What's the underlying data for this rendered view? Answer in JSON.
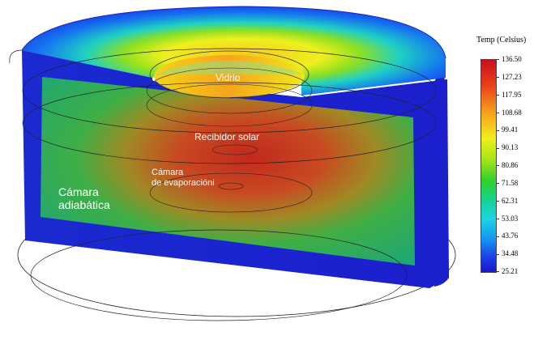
{
  "labels": {
    "glass": "Vidrio",
    "receiver": "Recibidor solar",
    "evaporation_line1": "Cámara",
    "evaporation_line2": "de evaporacióni",
    "adiabatic_line1": "Cámara",
    "adiabatic_line2": "adiabática"
  },
  "legend": {
    "title": "Temp (Celsius)",
    "ticks": [
      "136.50",
      "127.23",
      "117.95",
      "108.68",
      "99.41",
      "90.13",
      "80.86",
      "71.58",
      "62.31",
      "53.03",
      "43.76",
      "34.48",
      "25.21"
    ]
  },
  "colors": {
    "hot": "#c8101e",
    "warm": "#f2ee1c",
    "mid": "#2fd12a",
    "cool": "#1ed3e6",
    "cold": "#1818c8"
  }
}
